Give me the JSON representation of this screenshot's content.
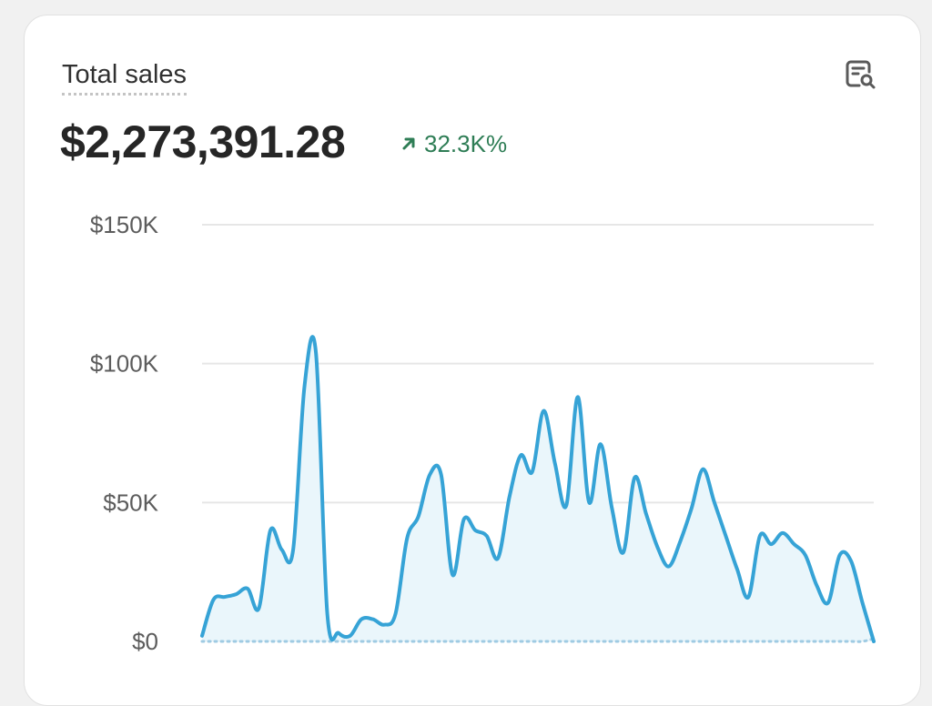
{
  "card": {
    "title": "Total sales",
    "total_value": "$2,273,391.28",
    "change_value": "32.3K%",
    "change_direction": "up",
    "report_icon": "report-search-icon"
  },
  "colors": {
    "line": "#36a3d6",
    "fill": "#eaf6fb",
    "comparison": "#9fcbe3",
    "positive": "#2e7d55"
  },
  "chart_data": {
    "type": "line",
    "title": "Total sales",
    "xlabel": "",
    "ylabel": "",
    "ylim": [
      0,
      150000
    ],
    "y_ticks": [
      {
        "value": 0,
        "label": "$0"
      },
      {
        "value": 50000,
        "label": "$50K"
      },
      {
        "value": 100000,
        "label": "$100K"
      },
      {
        "value": 150000,
        "label": "$150K"
      }
    ],
    "grid": true,
    "series": [
      {
        "name": "Total sales",
        "style": "solid",
        "values": [
          2000,
          15000,
          16000,
          17000,
          19000,
          12000,
          40000,
          33000,
          33000,
          92000,
          104000,
          10000,
          3000,
          2000,
          8000,
          8000,
          6000,
          10000,
          37000,
          45000,
          60000,
          60000,
          24000,
          44000,
          40000,
          38000,
          30000,
          52000,
          67000,
          61000,
          83000,
          64000,
          49000,
          88000,
          50000,
          71000,
          48000,
          32000,
          59000,
          46000,
          34000,
          27000,
          36000,
          48000,
          62000,
          50000,
          38000,
          26000,
          16000,
          38000,
          35000,
          39000,
          35000,
          31000,
          20000,
          14000,
          31000,
          29000,
          14000,
          0
        ]
      },
      {
        "name": "Comparison period",
        "style": "dotted",
        "values": [
          0,
          0,
          0,
          0,
          0,
          0,
          0,
          0,
          0,
          0,
          0,
          0,
          0,
          0,
          0,
          0,
          0,
          0,
          0,
          0,
          0,
          0,
          0,
          0,
          0,
          0,
          0,
          0,
          0,
          0,
          0,
          0,
          0,
          0,
          0,
          0,
          0,
          0,
          0,
          0,
          0,
          0,
          0,
          0,
          0,
          0,
          0,
          0,
          0,
          0,
          0,
          0,
          0,
          0,
          0,
          0,
          0,
          0,
          0,
          1000
        ]
      }
    ]
  }
}
